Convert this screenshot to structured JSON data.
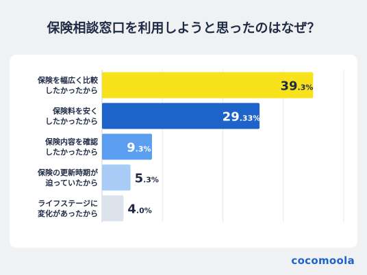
{
  "title": "保険相談窓口を利用しようと思ったのはなぜ？",
  "brand": "cocomoola",
  "chart_data": {
    "type": "bar",
    "orientation": "horizontal",
    "categories": [
      [
        "保険を幅広く比較",
        "したかったから"
      ],
      [
        "保険料を安く",
        "したかったから"
      ],
      [
        "保険内容を確認",
        "したかったから"
      ],
      [
        "保険の更新時期が",
        "迫っていたから"
      ],
      [
        "ライフステージに",
        "変化があったから"
      ]
    ],
    "values": [
      39.3,
      29.33,
      9.3,
      5.3,
      4.0
    ],
    "value_labels": [
      {
        "main": "39",
        "sub": ".3%"
      },
      {
        "main": "29",
        "sub": ".33%"
      },
      {
        "main": "9",
        "sub": ".3%"
      },
      {
        "main": "5",
        "sub": ".3%"
      },
      {
        "main": "4",
        "sub": ".0%"
      }
    ],
    "bar_colors": [
      "#f7e21c",
      "#1d63c9",
      "#5b9ef0",
      "#a9ccf7",
      "#dde3ec"
    ],
    "label_inside": [
      true,
      true,
      true,
      false,
      false
    ],
    "xlim": [
      0,
      45
    ],
    "grid": true,
    "xlabel": "",
    "ylabel": ""
  }
}
